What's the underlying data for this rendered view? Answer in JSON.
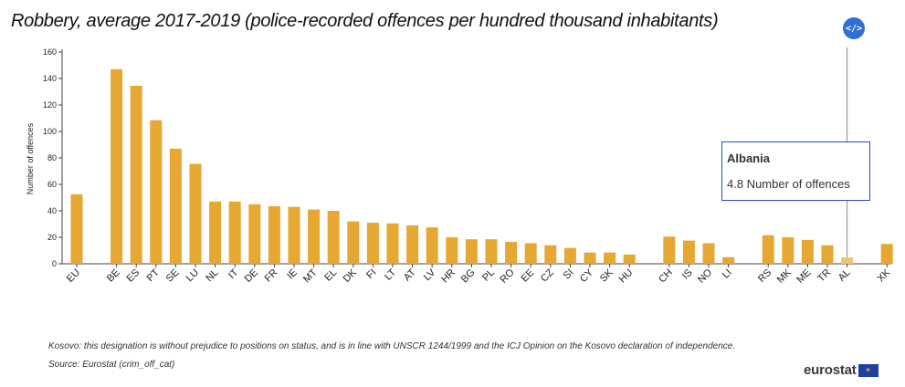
{
  "title": "Robbery, average 2017-2019 (police-recorded offences per hundred thousand inhabitants)",
  "embed_button": {
    "label": "</>",
    "icon": "code-icon"
  },
  "tooltip": {
    "country": "Albania",
    "value_text": "4.8 Number of offences"
  },
  "footnotes": {
    "kosovo": "Kosovo: this designation is without prejudice to positions on status, and is in line with UNSCR 1244/1999 and the ICJ Opinion on the Kosovo declaration of independence.",
    "source": "Source: Eurostat (crim_off_cat)"
  },
  "logo_text": "eurostat",
  "colors": {
    "bar": "#e6a733",
    "tooltip_border": "#2b4bbd",
    "embed_button": "#2f6fd6"
  },
  "chart_data": {
    "type": "bar",
    "title": "Robbery, average 2017-2019 (police-recorded offences per hundred thousand inhabitants)",
    "xlabel": "",
    "ylabel": "Number of offences",
    "ylim": [
      0,
      160
    ],
    "yticks": [
      0,
      20,
      40,
      60,
      80,
      100,
      120,
      140,
      160
    ],
    "grid": false,
    "highlighted": "AL",
    "categories": [
      "EU",
      "BE",
      "ES",
      "PT",
      "SE",
      "LU",
      "NL",
      "IT",
      "DE",
      "FR",
      "IE",
      "MT",
      "EL",
      "DK",
      "FI",
      "LT",
      "AT",
      "LV",
      "HR",
      "BG",
      "PL",
      "RO",
      "EE",
      "CZ",
      "SI",
      "CY",
      "SK",
      "HU",
      "CH",
      "IS",
      "NO",
      "LI",
      "RS",
      "MK",
      "ME",
      "TR",
      "AL",
      "XK"
    ],
    "values": [
      52.5,
      147,
      134.5,
      108.5,
      87,
      75.5,
      47,
      47,
      45,
      43.5,
      43,
      41,
      40,
      32,
      31,
      30.5,
      29,
      27.5,
      20,
      18.5,
      18.5,
      16.5,
      15.5,
      14,
      12,
      8.5,
      8.5,
      7,
      20.5,
      17.5,
      15.5,
      5,
      21.5,
      20,
      18,
      14,
      4.8,
      15
    ]
  }
}
